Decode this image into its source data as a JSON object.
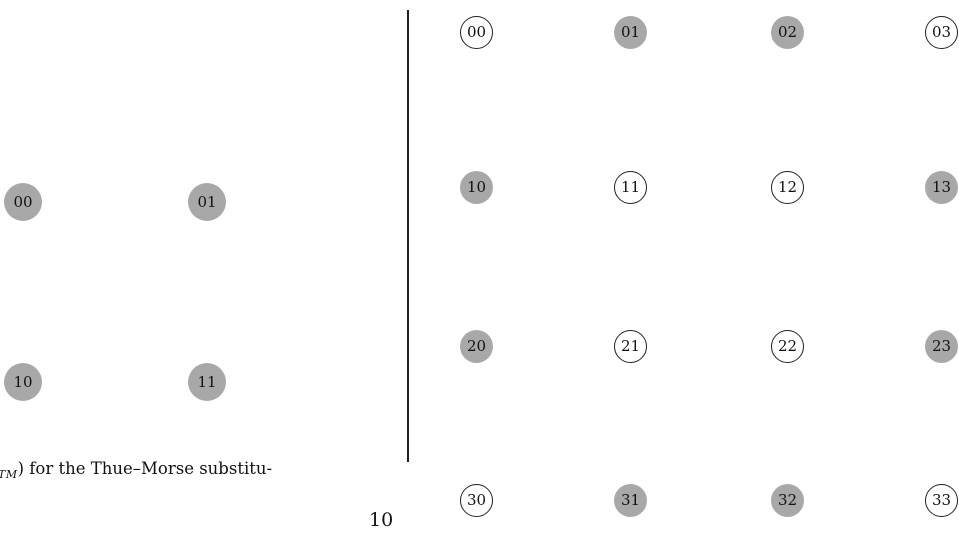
{
  "left_diagram": {
    "nodes": [
      {
        "label": "00",
        "style": "filled"
      },
      {
        "label": "01",
        "style": "filled"
      },
      {
        "label": "10",
        "style": "filled"
      },
      {
        "label": "11",
        "style": "filled"
      }
    ]
  },
  "right_diagram": {
    "nodes": [
      {
        "label": "00",
        "style": "outline"
      },
      {
        "label": "01",
        "style": "filled"
      },
      {
        "label": "02",
        "style": "filled"
      },
      {
        "label": "03",
        "style": "outline"
      },
      {
        "label": "10",
        "style": "filled"
      },
      {
        "label": "11",
        "style": "outline"
      },
      {
        "label": "12",
        "style": "outline"
      },
      {
        "label": "13",
        "style": "filled"
      },
      {
        "label": "20",
        "style": "filled"
      },
      {
        "label": "21",
        "style": "outline"
      },
      {
        "label": "22",
        "style": "outline"
      },
      {
        "label": "23",
        "style": "filled"
      },
      {
        "label": "30",
        "style": "outline"
      },
      {
        "label": "31",
        "style": "filled"
      },
      {
        "label": "32",
        "style": "filled"
      },
      {
        "label": "33",
        "style": "outline"
      }
    ]
  },
  "caption": {
    "subscript": "TM",
    "text": ") for the Thue–Morse substitu-"
  },
  "page_number": "10",
  "colors": {
    "filled_node": "#a8a8a8",
    "outline_stroke": "#222222"
  }
}
